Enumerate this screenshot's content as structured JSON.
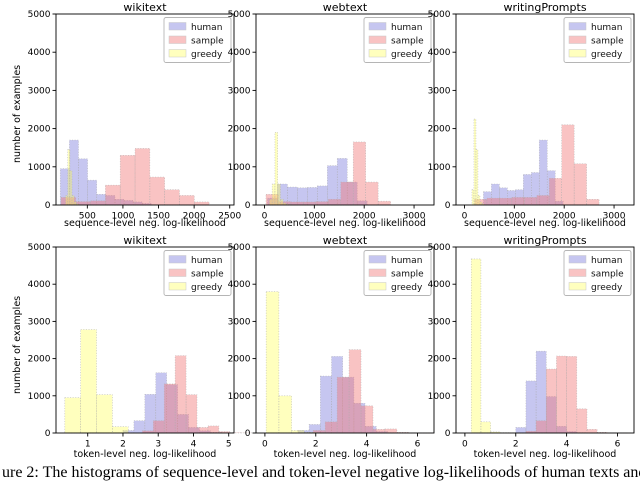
{
  "caption": "ure 2: The histograms of sequence-level and token-level negative log-likelihoods of human texts and m",
  "axis": {
    "ylabel": "number of examples",
    "seq_xlabel": "sequence-level neg. log-likelihood",
    "tok_xlabel": "token-level neg. log-likelihood"
  },
  "legend_labels": [
    "human",
    "sample",
    "greedy"
  ],
  "colors": {
    "human": "#8080dd",
    "sample": "#f07070",
    "greedy": "#ffff55",
    "axis": "#000000",
    "legend_border": "#b5b5b5"
  },
  "chart_data": [
    {
      "type": "bar",
      "title": "wikitext",
      "xlabel": "sequence-level neg. log-likelihood",
      "ylabel": "number of examples",
      "xlim": [
        60,
        2560
      ],
      "ylim": [
        0,
        5000
      ],
      "xticks": [
        500,
        1000,
        1500,
        2000,
        2500
      ],
      "yticks": [
        0,
        1000,
        2000,
        3000,
        4000,
        5000
      ],
      "grid": false,
      "legend_position": "upper right",
      "series": [
        {
          "name": "human",
          "color": "#8080dd",
          "opacity": 0.45,
          "bin_start": 120,
          "bin_width": 128,
          "counts": [
            950,
            1700,
            1210,
            650,
            280,
            250,
            150,
            120,
            80,
            40
          ]
        },
        {
          "name": "sample",
          "color": "#f07070",
          "opacity": 0.42,
          "bin_start": 130,
          "bin_width": 208,
          "counts": [
            200,
            90,
            110,
            520,
            1300,
            1480,
            730,
            400,
            250,
            80
          ]
        },
        {
          "name": "greedy",
          "color": "#ffff55",
          "opacity": 0.38,
          "bin_start": 195,
          "bin_width": 30,
          "counts": [
            250,
            1450,
            900,
            250,
            80,
            30,
            10,
            5,
            3,
            2
          ]
        }
      ]
    },
    {
      "type": "bar",
      "title": "webtext",
      "xlabel": "sequence-level neg. log-likelihood",
      "ylabel": "",
      "xlim": [
        -170,
        3400
      ],
      "ylim": [
        0,
        5000
      ],
      "xticks": [
        0,
        1000,
        2000,
        3000
      ],
      "yticks": [
        0,
        1000,
        2000,
        3000,
        4000,
        5000
      ],
      "grid": false,
      "legend_position": "upper right",
      "series": [
        {
          "name": "human",
          "color": "#8080dd",
          "opacity": 0.45,
          "bin_start": 60,
          "bin_width": 200,
          "counts": [
            180,
            550,
            470,
            450,
            460,
            500,
            1030,
            1220,
            600,
            110
          ]
        },
        {
          "name": "sample",
          "color": "#f07070",
          "opacity": 0.42,
          "bin_start": 30,
          "bin_width": 250,
          "counts": [
            280,
            90,
            80,
            80,
            90,
            150,
            600,
            1650,
            600,
            100
          ]
        },
        {
          "name": "greedy",
          "color": "#ffff55",
          "opacity": 0.38,
          "bin_start": 100,
          "bin_width": 55,
          "counts": [
            150,
            550,
            1900,
            550,
            150,
            50,
            20,
            10,
            5,
            3
          ]
        }
      ]
    },
    {
      "type": "bar",
      "title": "writingPrompts",
      "xlabel": "sequence-level neg. log-likelihood",
      "ylabel": "",
      "xlim": [
        -170,
        3400
      ],
      "ylim": [
        0,
        5000
      ],
      "xticks": [
        0,
        1000,
        2000,
        3000
      ],
      "yticks": [
        0,
        1000,
        2000,
        3000,
        4000,
        5000
      ],
      "grid": false,
      "legend_position": "upper right",
      "series": [
        {
          "name": "human",
          "color": "#8080dd",
          "opacity": 0.45,
          "bin_start": 380,
          "bin_width": 160,
          "counts": [
            350,
            550,
            450,
            380,
            400,
            800,
            850,
            1700,
            900,
            100
          ]
        },
        {
          "name": "sample",
          "color": "#f07070",
          "opacity": 0.42,
          "bin_start": 200,
          "bin_width": 250,
          "counts": [
            150,
            180,
            180,
            200,
            200,
            250,
            700,
            2100,
            1080,
            150
          ]
        },
        {
          "name": "greedy",
          "color": "#ffff55",
          "opacity": 0.38,
          "bin_start": 150,
          "bin_width": 40,
          "counts": [
            400,
            2250,
            1450,
            250,
            80,
            30,
            10,
            5,
            3,
            2
          ]
        }
      ]
    },
    {
      "type": "bar",
      "title": "wikitext",
      "xlabel": "token-level neg. log-likelihood",
      "ylabel": "number of examples",
      "xlim": [
        0.1,
        5.15
      ],
      "ylim": [
        0,
        5000
      ],
      "xticks": [
        1,
        2,
        3,
        4,
        5
      ],
      "yticks": [
        0,
        1000,
        2000,
        3000,
        4000,
        5000
      ],
      "grid": false,
      "legend_position": "upper right",
      "series": [
        {
          "name": "human",
          "color": "#8080dd",
          "opacity": 0.45,
          "bin_start": 2.0,
          "bin_width": 0.31,
          "counts": [
            70,
            330,
            1040,
            1620,
            1300,
            500,
            150,
            60,
            20,
            10
          ]
        },
        {
          "name": "sample",
          "color": "#f07070",
          "opacity": 0.42,
          "bin_start": 2.55,
          "bin_width": 0.31,
          "counts": [
            60,
            330,
            1320,
            2080,
            1030,
            150,
            190,
            40,
            10,
            5
          ]
        },
        {
          "name": "greedy",
          "color": "#ffff55",
          "opacity": 0.38,
          "bin_start": 0.35,
          "bin_width": 0.45,
          "counts": [
            950,
            2780,
            1030,
            170,
            0,
            0,
            0,
            0,
            0,
            0
          ]
        }
      ]
    },
    {
      "type": "bar",
      "title": "webtext",
      "xlabel": "token-level neg. log-likelihood",
      "ylabel": "",
      "xlim": [
        -0.35,
        6.65
      ],
      "ylim": [
        0,
        5000
      ],
      "xticks": [
        0,
        2,
        4,
        6
      ],
      "yticks": [
        0,
        1000,
        2000,
        3000,
        4000,
        5000
      ],
      "grid": false,
      "legend_position": "upper right",
      "series": [
        {
          "name": "human",
          "color": "#8080dd",
          "opacity": 0.45,
          "bin_start": 1.3,
          "bin_width": 0.44,
          "counts": [
            70,
            230,
            1530,
            2060,
            1500,
            800,
            180,
            40,
            10,
            5
          ]
        },
        {
          "name": "sample",
          "color": "#f07070",
          "opacity": 0.42,
          "bin_start": 1.9,
          "bin_width": 0.47,
          "counts": [
            70,
            300,
            1500,
            2240,
            730,
            100,
            110,
            20,
            5,
            3
          ]
        },
        {
          "name": "greedy",
          "color": "#ffff55",
          "opacity": 0.38,
          "bin_start": 0.05,
          "bin_width": 0.5,
          "counts": [
            3800,
            1000,
            70,
            20,
            10,
            5,
            3,
            2,
            1,
            1
          ]
        }
      ]
    },
    {
      "type": "bar",
      "title": "writingPrompts",
      "xlabel": "token-level neg. log-likelihood",
      "ylabel": "",
      "xlim": [
        -0.35,
        6.65
      ],
      "ylim": [
        0,
        5000
      ],
      "xticks": [
        0,
        2,
        4,
        6
      ],
      "yticks": [
        0,
        1000,
        2000,
        3000,
        4000,
        5000
      ],
      "grid": false,
      "legend_position": "upper right",
      "series": [
        {
          "name": "human",
          "color": "#8080dd",
          "opacity": 0.45,
          "bin_start": 2.0,
          "bin_width": 0.4,
          "counts": [
            150,
            1400,
            2200,
            980,
            180,
            40,
            10,
            5,
            2,
            1
          ]
        },
        {
          "name": "sample",
          "color": "#f07070",
          "opacity": 0.42,
          "bin_start": 2.4,
          "bin_width": 0.4,
          "counts": [
            50,
            330,
            1720,
            2070,
            2060,
            650,
            100,
            20,
            5,
            2
          ]
        },
        {
          "name": "greedy",
          "color": "#ffff55",
          "opacity": 0.38,
          "bin_start": 0.25,
          "bin_width": 0.38,
          "counts": [
            4680,
            300,
            30,
            10,
            5,
            3,
            2,
            1,
            1,
            0
          ]
        }
      ]
    }
  ]
}
